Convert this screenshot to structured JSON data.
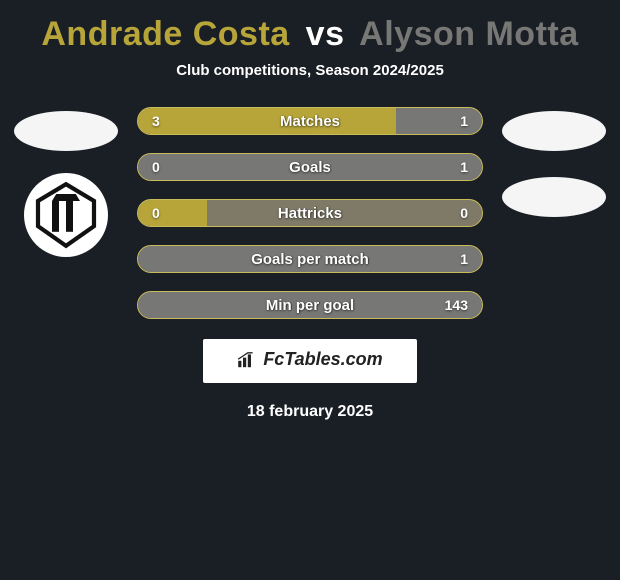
{
  "title": {
    "player1": "Andrade Costa",
    "vs": "vs",
    "player2": "Alyson Motta",
    "player1_color": "#b7a53a",
    "vs_color": "#ffffff",
    "player2_color": "#777775"
  },
  "subtitle": "Club competitions, Season 2024/2025",
  "colors": {
    "background": "#1a1f26",
    "bar_track": "#7f7a68",
    "bar_left_fill": "#b7a53a",
    "bar_right_fill": "#777775",
    "bar_border": "#c9bb5a"
  },
  "stats": [
    {
      "label": "Matches",
      "left_val": "3",
      "right_val": "1",
      "left_pct": 75,
      "right_pct": 25
    },
    {
      "label": "Goals",
      "left_val": "0",
      "right_val": "1",
      "left_pct": 20,
      "right_pct": 100
    },
    {
      "label": "Hattricks",
      "left_val": "0",
      "right_val": "0",
      "left_pct": 20,
      "right_pct": 0
    },
    {
      "label": "Goals per match",
      "left_val": "",
      "right_val": "1",
      "left_pct": 20,
      "right_pct": 100
    },
    {
      "label": "Min per goal",
      "left_val": "",
      "right_val": "143",
      "left_pct": 20,
      "right_pct": 100
    }
  ],
  "brand": "FcTables.com",
  "date": "18 february 2025",
  "badges": {
    "left_has_club": true,
    "right_has_club": false
  }
}
